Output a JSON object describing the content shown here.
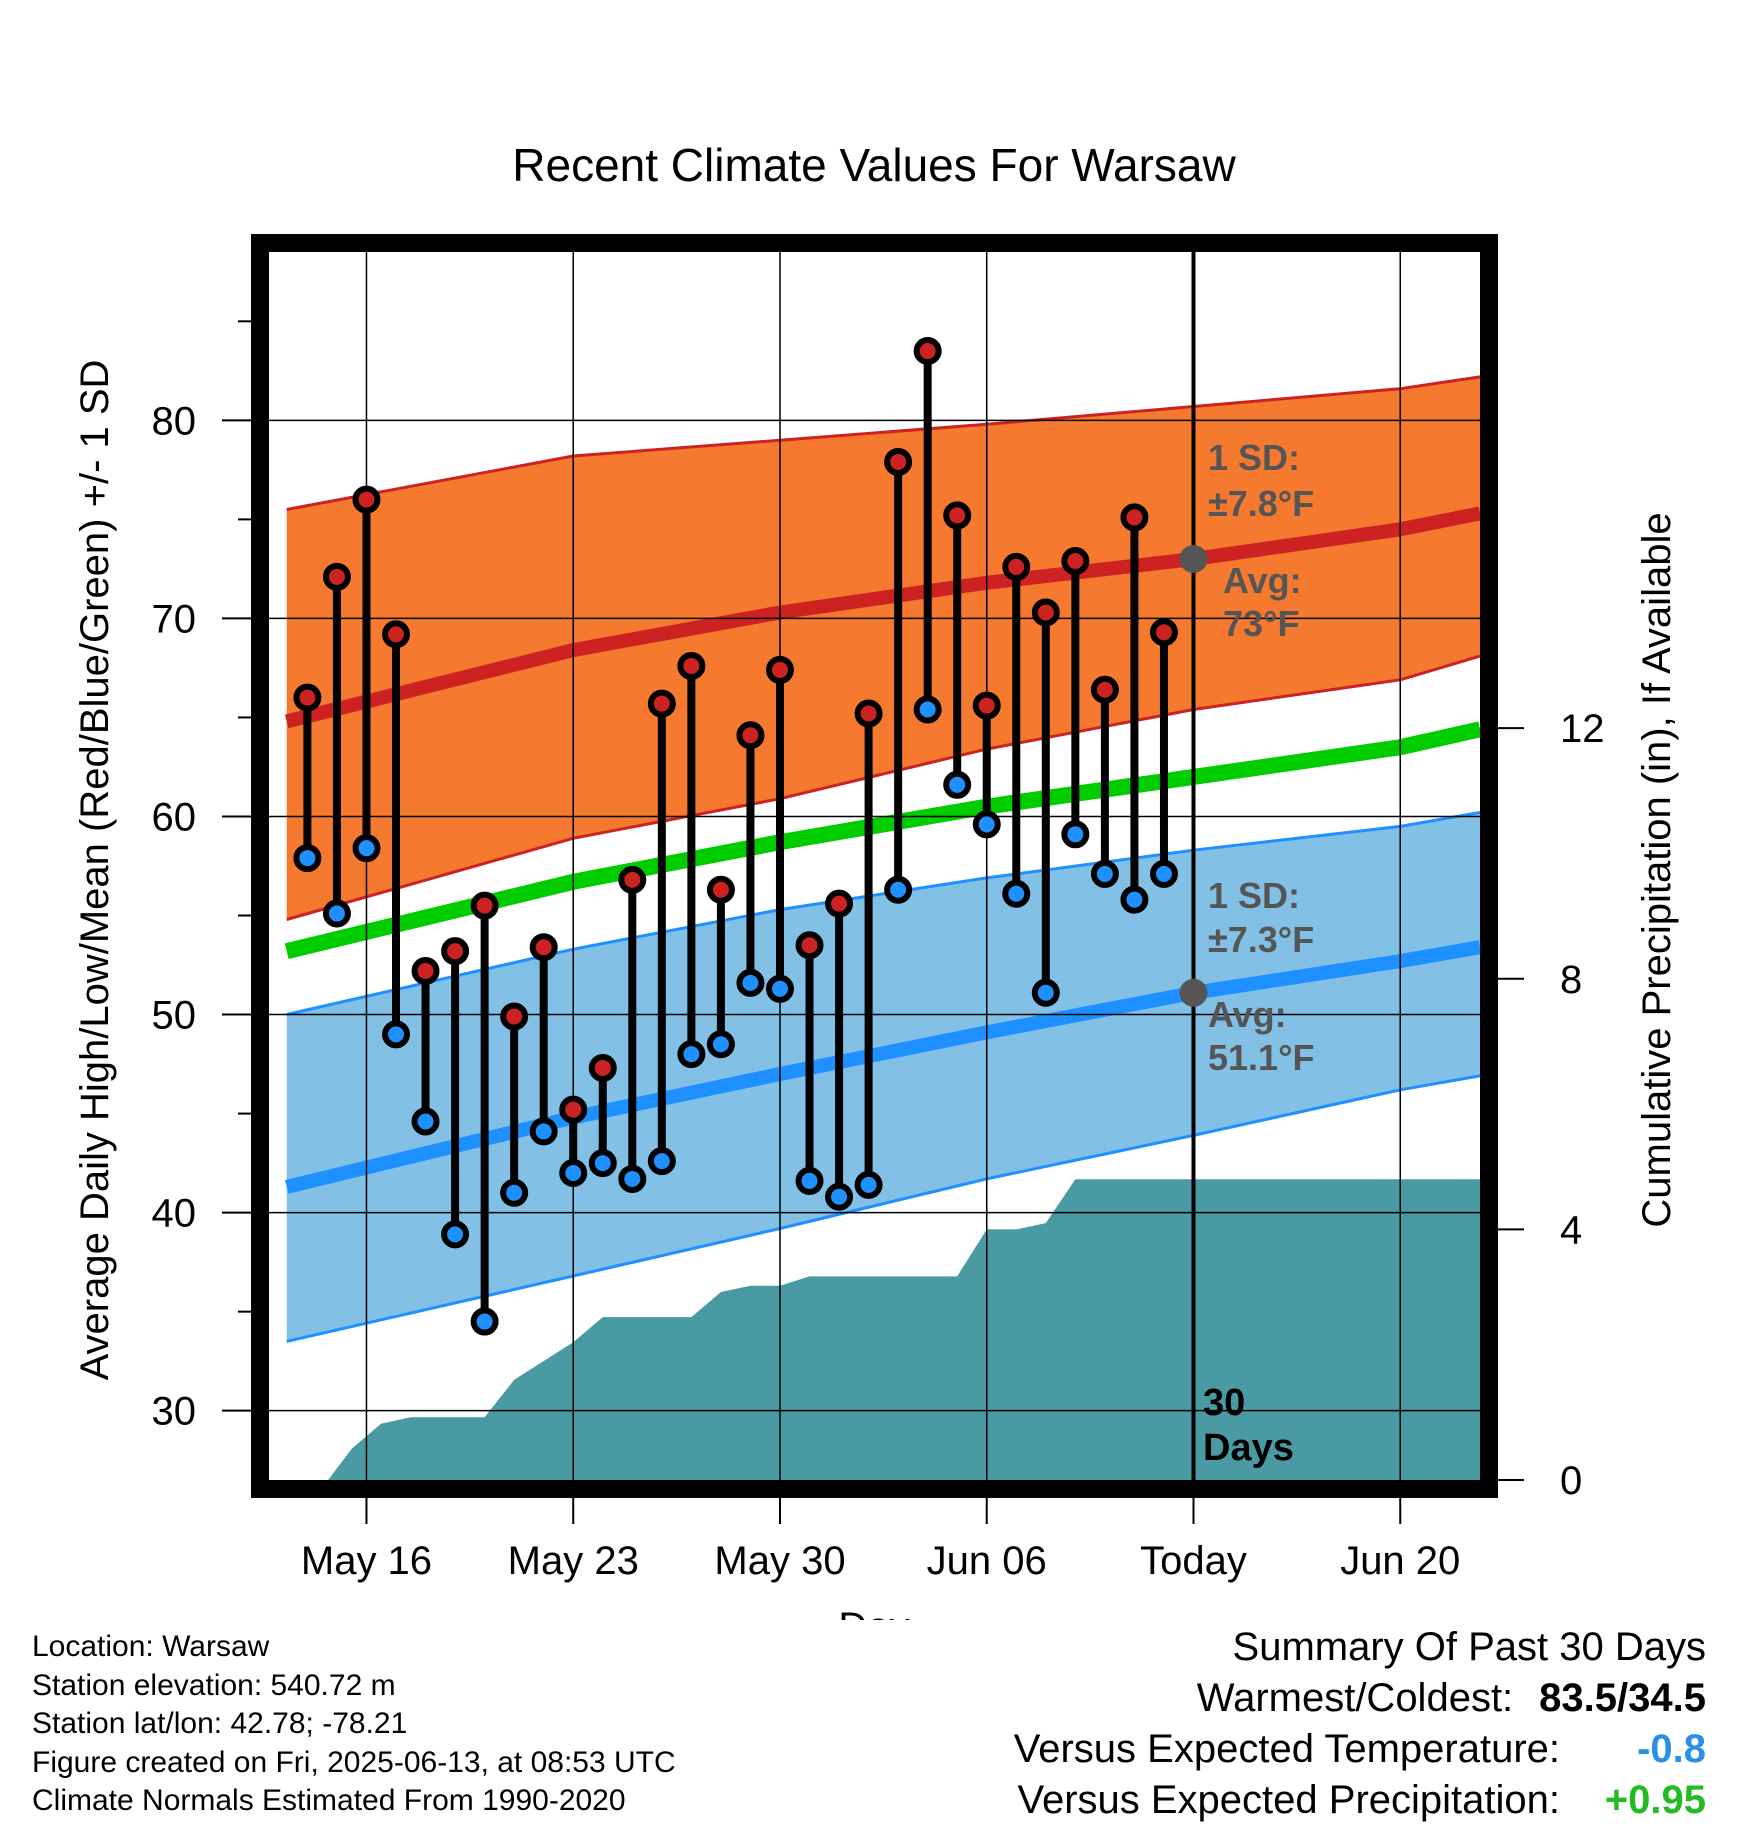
{
  "chart_data": {
    "type": "line",
    "title": "Recent Climate Values For Warsaw",
    "xlabel": "Day",
    "ylabel": "Average Daily High/Low/Mean (Red/Blue/Green) +/- 1 SD",
    "y2label": "Cumulative Precipitation (in), If Available",
    "ylim": [
      26.5,
      88.5
    ],
    "y2lim": [
      0,
      19.6
    ],
    "yticks": [
      30,
      40,
      50,
      60,
      70,
      80
    ],
    "y2ticks": [
      0,
      4,
      8,
      12
    ],
    "xlim": [
      -3.3,
      37.7
    ],
    "xticks": [
      {
        "day": 0,
        "label": "May 16"
      },
      {
        "day": 7,
        "label": "May 23"
      },
      {
        "day": 14,
        "label": "May 30"
      },
      {
        "day": 21,
        "label": "Jun 06"
      },
      {
        "day": 28,
        "label": "Today"
      },
      {
        "day": 35,
        "label": "Jun 20"
      }
    ],
    "grid": true,
    "today_day": 28,
    "today_marker_label": "30 Days",
    "normals": {
      "day": [
        -2.7,
        7,
        14,
        21,
        28,
        35,
        37.7
      ],
      "high_avg": [
        64.8,
        68.4,
        70.3,
        71.8,
        73.0,
        74.5,
        75.3
      ],
      "high_upper": [
        75.5,
        78.2,
        79.0,
        79.8,
        80.7,
        81.6,
        82.2
      ],
      "high_lower": [
        54.8,
        58.9,
        60.9,
        63.4,
        65.4,
        66.9,
        68.1
      ],
      "low_avg": [
        41.3,
        44.8,
        47.0,
        49.1,
        51.1,
        52.7,
        53.4
      ],
      "low_upper": [
        50.0,
        53.3,
        55.3,
        56.9,
        58.3,
        59.5,
        60.2
      ],
      "low_lower": [
        33.5,
        36.8,
        39.2,
        41.7,
        43.9,
        46.2,
        46.9
      ],
      "mean_avg": [
        53.2,
        56.7,
        58.7,
        60.5,
        62.0,
        63.5,
        64.4
      ]
    },
    "series": [
      {
        "name": "High",
        "color": "#cc2222",
        "day": [
          -2,
          -1,
          0,
          1,
          2,
          3,
          4,
          5,
          6,
          7,
          8,
          9,
          10,
          11,
          12,
          13,
          14,
          15,
          16,
          17,
          18,
          19,
          20,
          21,
          22,
          23,
          24,
          25,
          26,
          27
        ],
        "values": [
          66.0,
          72.1,
          76.0,
          69.2,
          52.2,
          53.2,
          55.5,
          49.9,
          53.4,
          45.2,
          47.3,
          56.8,
          65.7,
          67.6,
          56.3,
          64.1,
          67.4,
          53.5,
          55.6,
          65.2,
          77.9,
          83.5,
          75.2,
          65.6,
          72.6,
          70.3,
          72.9,
          66.4,
          75.1,
          69.3
        ]
      },
      {
        "name": "Low",
        "color": "#1e90ff",
        "day": [
          -2,
          -1,
          0,
          1,
          2,
          3,
          4,
          5,
          6,
          7,
          8,
          9,
          10,
          11,
          12,
          13,
          14,
          15,
          16,
          17,
          18,
          19,
          20,
          21,
          22,
          23,
          24,
          25,
          26,
          27
        ],
        "values": [
          57.9,
          55.1,
          58.4,
          49.0,
          44.6,
          38.9,
          34.5,
          41.0,
          44.1,
          42.0,
          42.5,
          41.7,
          42.6,
          48.0,
          48.5,
          51.6,
          51.3,
          41.6,
          40.8,
          41.4,
          56.3,
          65.4,
          61.6,
          59.6,
          56.1,
          51.1,
          59.1,
          57.1,
          55.8,
          57.1
        ]
      }
    ],
    "precip": {
      "day": [
        -2.7,
        -1.3,
        -0.5,
        0.5,
        1.5,
        3,
        4,
        5,
        6,
        7,
        8,
        9,
        10,
        11,
        12,
        13,
        14,
        15,
        16,
        17,
        18,
        19,
        20,
        21,
        22,
        23,
        24,
        25,
        26,
        27,
        28,
        37.7
      ],
      "values": [
        0,
        0,
        0.5,
        0.9,
        1.0,
        1.0,
        1.0,
        1.6,
        1.9,
        2.2,
        2.6,
        2.6,
        2.6,
        2.6,
        3.0,
        3.1,
        3.1,
        3.25,
        3.25,
        3.25,
        3.25,
        3.25,
        3.25,
        4.0,
        4.0,
        4.1,
        4.8,
        4.8,
        4.8,
        4.8,
        4.8,
        4.8
      ]
    },
    "annotations": {
      "high_sd_label": "1 SD:",
      "high_sd_value": "±7.8°F",
      "high_avg_label": "Avg:",
      "high_avg_value": "73°F",
      "low_sd_label": "1 SD:",
      "low_sd_value": "±7.3°F",
      "low_avg_label": "Avg:",
      "low_avg_value": "51.1°F"
    },
    "colors": {
      "high_band": "#f57a30",
      "high_line": "#cc2222",
      "low_band": "#82c0e6",
      "low_line": "#1e90ff",
      "mean_line": "#00cc00",
      "precip_fill": "#4a9aa4",
      "annotation_text": "#555555"
    }
  },
  "info": {
    "location": "Location: Warsaw",
    "elevation": "Station elevation: 540.72 m",
    "latlon": "Station lat/lon: 42.78; -78.21",
    "created": "Figure created on Fri, 2025-06-13, at 08:53 UTC",
    "normals": "Climate Normals Estimated From 1990-2020"
  },
  "summary": {
    "title": "Summary Of Past 30 Days",
    "warm_cold_label": "Warmest/Coldest:",
    "warm_cold_value": "83.5/34.5",
    "temp_label": "Versus Expected Temperature:",
    "temp_value": "-0.8",
    "temp_color": "#2a8fe6",
    "precip_label": "Versus Expected Precipitation:",
    "precip_value": "+0.95",
    "precip_color": "#22bb22"
  }
}
